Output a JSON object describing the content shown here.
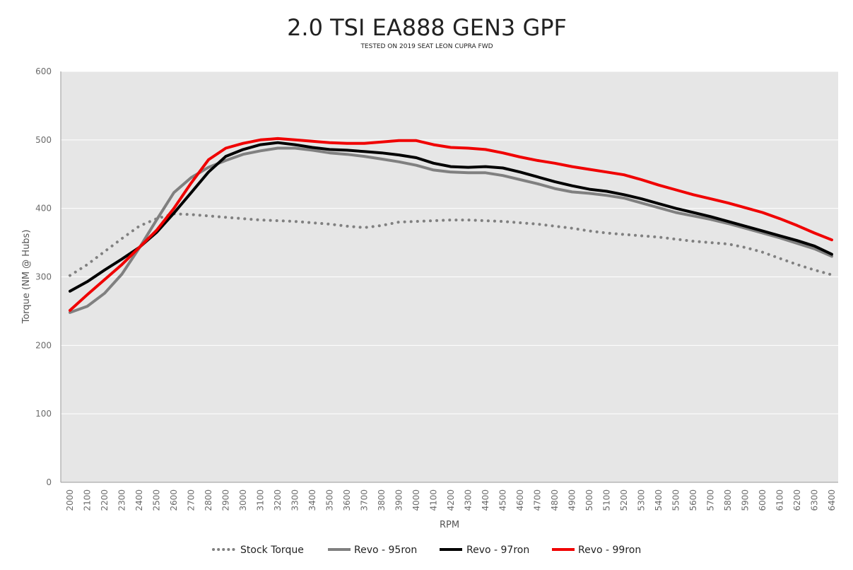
{
  "chart_data": {
    "type": "line",
    "title": "2.0 TSI EA888 GEN3 GPF",
    "subtitle": "TESTED ON 2019 SEAT LEON CUPRA FWD",
    "xlabel": "RPM",
    "ylabel": "Torque (NM @ Hubs)",
    "ylim": [
      0,
      600
    ],
    "yticks": [
      0,
      100,
      200,
      300,
      400,
      500,
      600
    ],
    "grid": true,
    "legend_position": "bottom",
    "x": [
      2000,
      2100,
      2200,
      2300,
      2400,
      2500,
      2600,
      2700,
      2800,
      2900,
      3000,
      3100,
      3200,
      3300,
      3400,
      3500,
      3600,
      3700,
      3800,
      3900,
      4000,
      4100,
      4200,
      4300,
      4400,
      4500,
      4600,
      4700,
      4800,
      4900,
      5000,
      5100,
      5200,
      5300,
      5400,
      5500,
      5600,
      5700,
      5800,
      5900,
      6000,
      6100,
      6200,
      6300,
      6400
    ],
    "series": [
      {
        "name": "Stock Torque",
        "color": "#808080",
        "style": "dotted",
        "values": [
          302,
          318,
          337,
          356,
          374,
          385,
          392,
          391,
          389,
          387,
          385,
          383,
          382,
          381,
          379,
          377,
          374,
          372,
          375,
          380,
          381,
          382,
          383,
          383,
          382,
          381,
          379,
          377,
          374,
          371,
          367,
          364,
          362,
          360,
          358,
          355,
          352,
          350,
          348,
          343,
          336,
          327,
          318,
          310,
          303
        ]
      },
      {
        "name": "Revo - 95ron",
        "color": "#808080",
        "style": "solid",
        "values": [
          248,
          257,
          276,
          304,
          342,
          383,
          423,
          445,
          460,
          470,
          479,
          484,
          488,
          488,
          485,
          481,
          479,
          476,
          472,
          468,
          463,
          456,
          453,
          452,
          452,
          448,
          442,
          436,
          429,
          424,
          422,
          419,
          415,
          408,
          401,
          394,
          389,
          384,
          378,
          371,
          364,
          357,
          349,
          341,
          330
        ]
      },
      {
        "name": "Revo - 97ron",
        "color": "#000000",
        "style": "solid",
        "values": [
          279,
          293,
          310,
          326,
          343,
          365,
          393,
          423,
          453,
          476,
          486,
          493,
          496,
          493,
          489,
          486,
          485,
          483,
          481,
          478,
          474,
          466,
          461,
          460,
          461,
          459,
          453,
          446,
          439,
          433,
          428,
          425,
          420,
          414,
          407,
          400,
          394,
          388,
          381,
          374,
          367,
          360,
          353,
          345,
          333
        ]
      },
      {
        "name": "Revo - 99ron",
        "color": "#f00000",
        "style": "solid",
        "values": [
          251,
          274,
          296,
          318,
          343,
          368,
          400,
          437,
          471,
          488,
          495,
          500,
          502,
          500,
          498,
          496,
          495,
          495,
          497,
          499,
          499,
          493,
          489,
          488,
          486,
          481,
          475,
          470,
          466,
          461,
          457,
          453,
          449,
          442,
          434,
          427,
          420,
          414,
          408,
          401,
          394,
          385,
          375,
          364,
          354
        ]
      }
    ]
  }
}
